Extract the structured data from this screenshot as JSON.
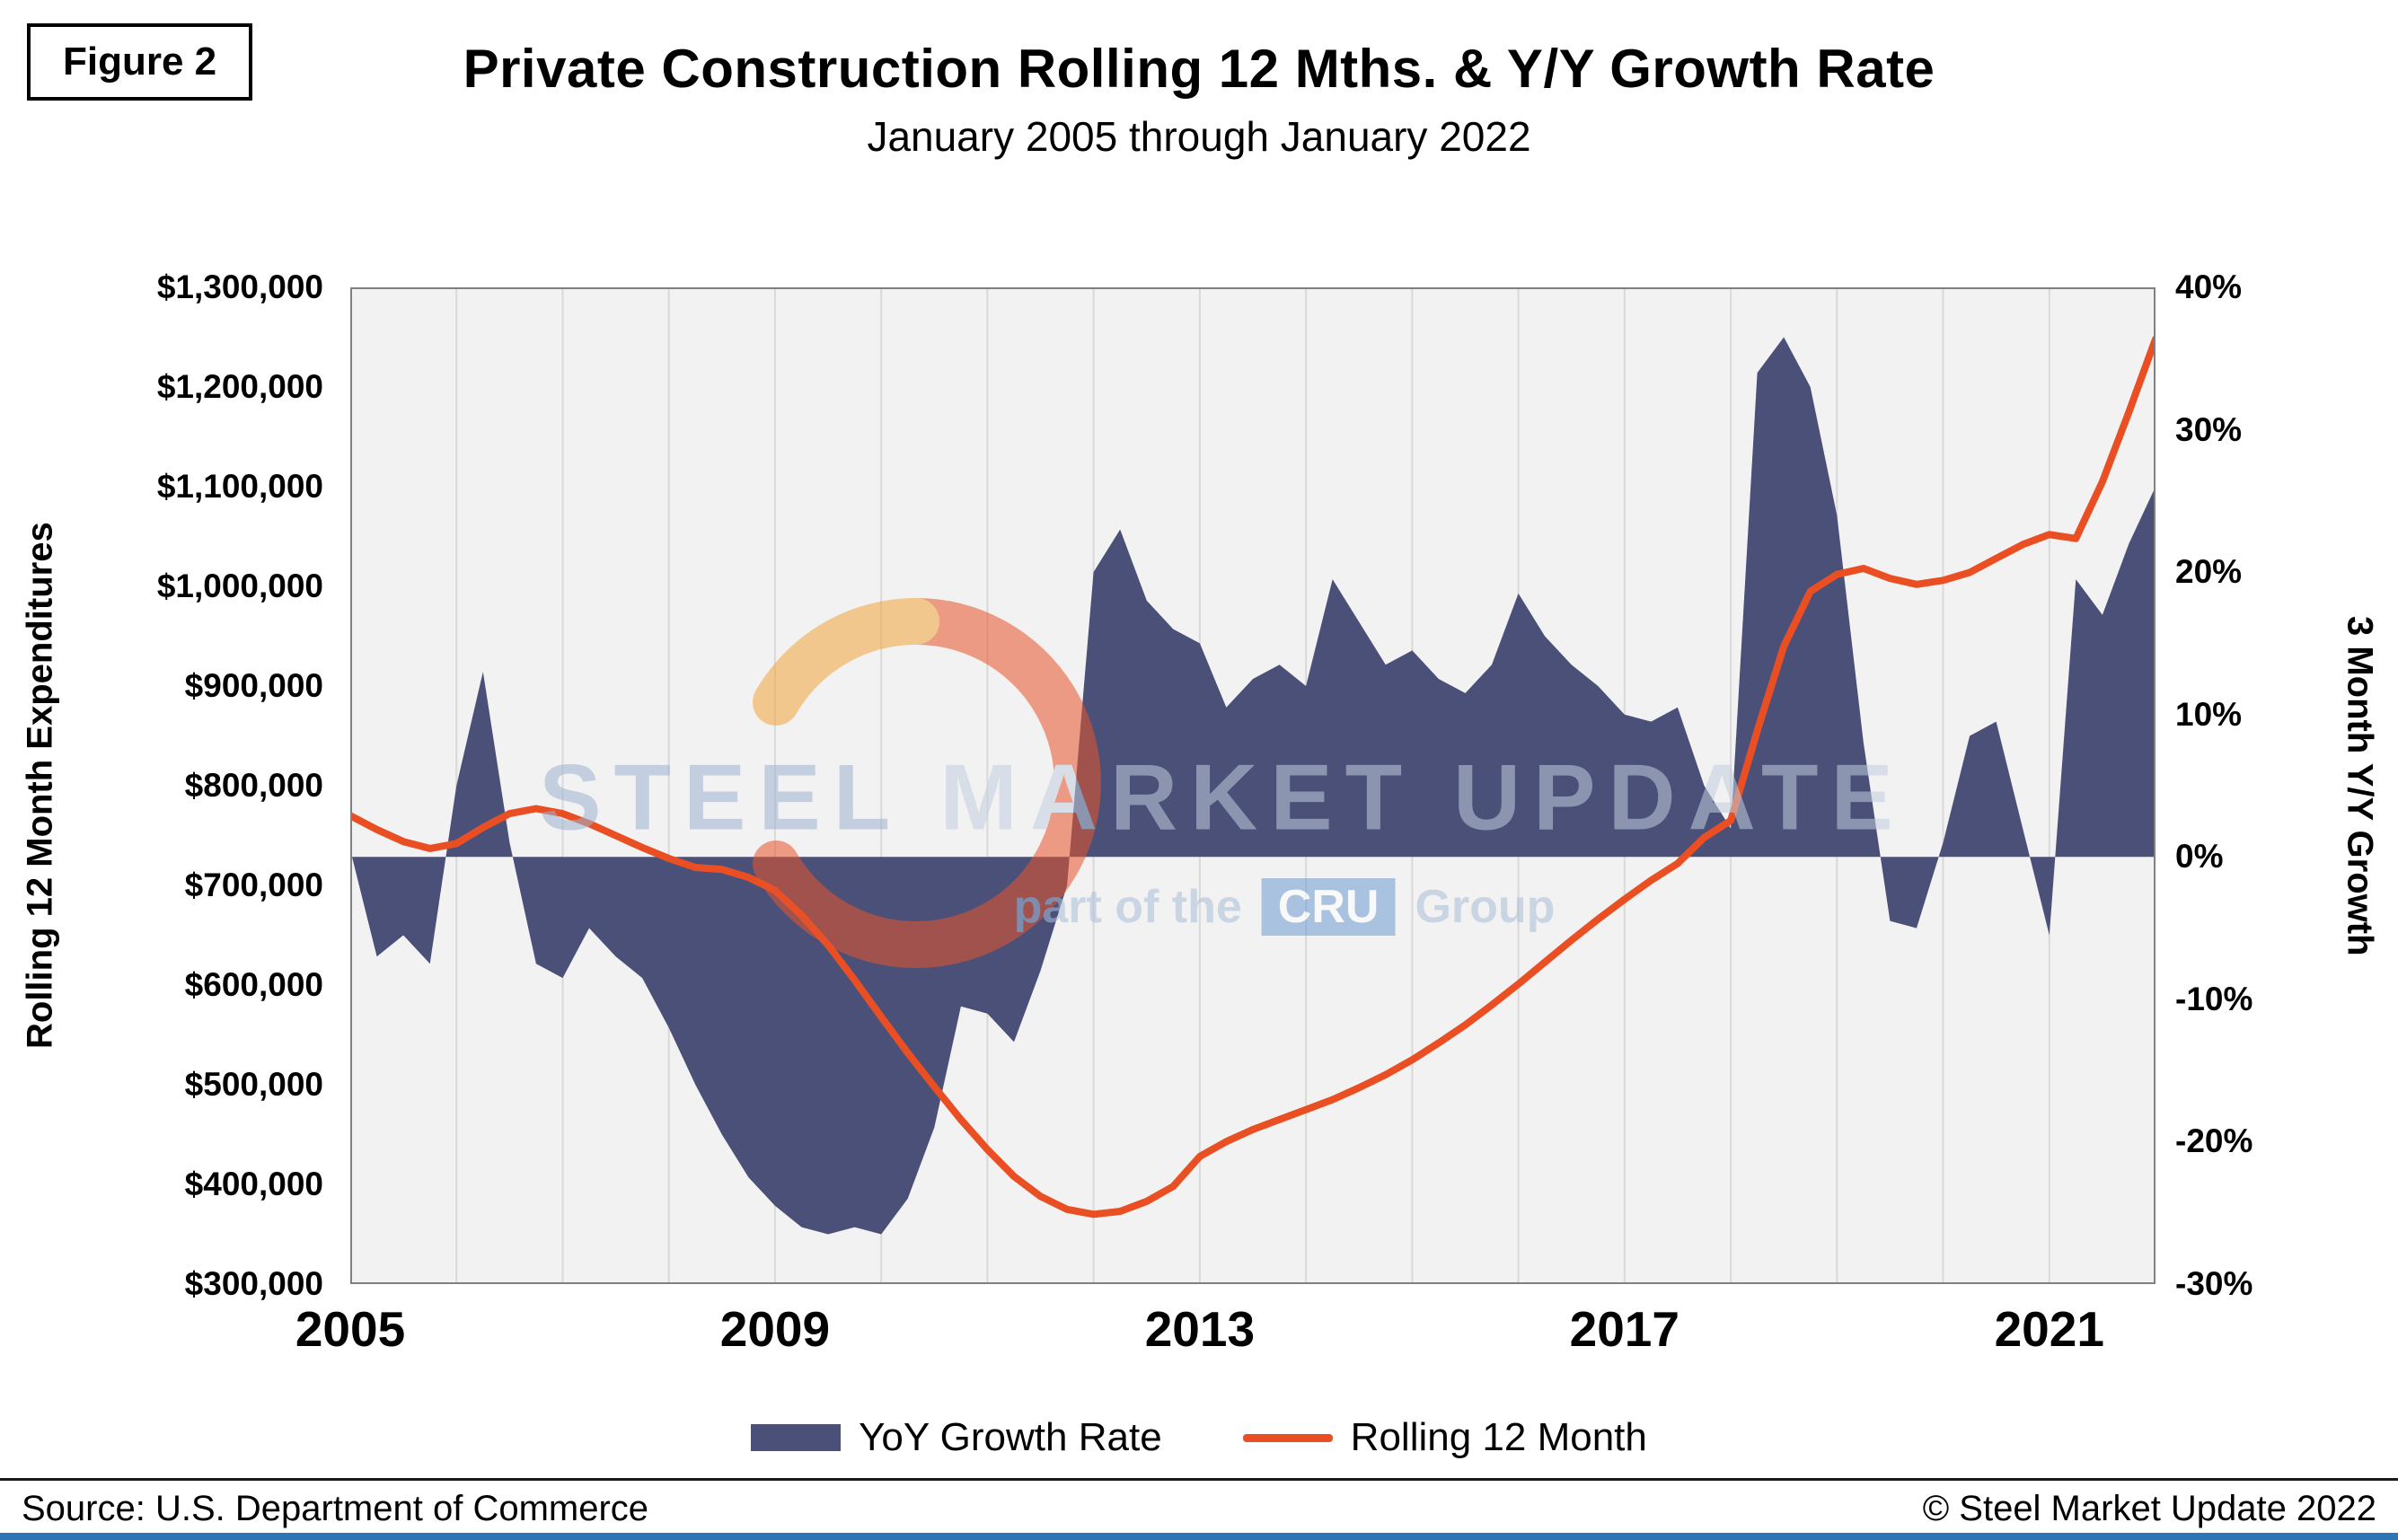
{
  "figure_label": "Figure 2",
  "title": "Private Construction Rolling 12 Mths. & Y/Y Growth Rate",
  "subtitle": "January 2005 through January 2022",
  "footer": {
    "source": "Source: U.S. Department of Commerce",
    "copyright": "© Steel Market Update 2022"
  },
  "watermark": {
    "word1": "STEEL",
    "word2": "MARKET",
    "word3": "UPDATE",
    "sub_prefix": "part of the",
    "sub_box": "CRU",
    "sub_suffix": "Group"
  },
  "legend": [
    {
      "label": "YoY Growth Rate",
      "type": "area",
      "color": "#4a5078"
    },
    {
      "label": "Rolling 12 Month",
      "type": "line",
      "color": "#ea4f23"
    }
  ],
  "chart_data": {
    "type": "combo",
    "note": "Values estimated from figure at quarterly resolution, Jan 2005 through Jan 2022",
    "plot_bg": "#f2f2f2",
    "gridline_color": "#d9d9d9",
    "frame_color": "#808080",
    "grid": "vertical-yearly",
    "x_range": [
      2005,
      2022
    ],
    "baseline_right": 0,
    "left_axis": {
      "title": "Rolling 12 Month Expenditures",
      "min": 300000,
      "max": 1300000,
      "tick_step": 100000,
      "tick_labels": [
        "$1,300,000",
        "$1,200,000",
        "$1,100,000",
        "$1,000,000",
        "$900,000",
        "$800,000",
        "$700,000",
        "$600,000",
        "$500,000",
        "$400,000",
        "$300,000"
      ]
    },
    "right_axis": {
      "title": "3 Month Y/Y Growth",
      "min": -30,
      "max": 40,
      "tick_step": 10,
      "tick_labels": [
        "40%",
        "30%",
        "20%",
        "10%",
        "0%",
        "-10%",
        "-20%",
        "-30%"
      ]
    },
    "x_ticks": [
      {
        "label": "2005",
        "year": 2005
      },
      {
        "label": "2009",
        "year": 2009
      },
      {
        "label": "2013",
        "year": 2013
      },
      {
        "label": "2017",
        "year": 2017
      },
      {
        "label": "2021",
        "year": 2021
      }
    ],
    "x": [
      2005,
      2005.25,
      2005.5,
      2005.75,
      2006,
      2006.25,
      2006.5,
      2006.75,
      2007,
      2007.25,
      2007.5,
      2007.75,
      2008,
      2008.25,
      2008.5,
      2008.75,
      2009,
      2009.25,
      2009.5,
      2009.75,
      2010,
      2010.25,
      2010.5,
      2010.75,
      2011,
      2011.25,
      2011.5,
      2011.75,
      2012,
      2012.25,
      2012.5,
      2012.75,
      2013,
      2013.25,
      2013.5,
      2013.75,
      2014,
      2014.25,
      2014.5,
      2014.75,
      2015,
      2015.25,
      2015.5,
      2015.75,
      2016,
      2016.25,
      2016.5,
      2016.75,
      2017,
      2017.25,
      2017.5,
      2017.75,
      2018,
      2018.25,
      2018.5,
      2018.75,
      2019,
      2019.25,
      2019.5,
      2019.75,
      2020,
      2020.25,
      2020.5,
      2020.75,
      2021,
      2021.25,
      2021.5,
      2021.75,
      2022
    ],
    "series": [
      {
        "name": "YoY Growth Rate",
        "type": "area",
        "axis": "right",
        "unit": "percent",
        "color": "#4a5078",
        "values": [
          0.5,
          -7,
          -5.5,
          -7.5,
          5,
          13,
          1,
          -7.5,
          -8.5,
          -5,
          -7,
          -8.5,
          -12,
          -16,
          -19.5,
          -22.5,
          -24.5,
          -26,
          -26.5,
          -26,
          -26.5,
          -24,
          -19,
          -10.5,
          -11,
          -13,
          -8,
          -2,
          20,
          23,
          18,
          16,
          15,
          10.5,
          12.5,
          13.5,
          12,
          19.5,
          16.5,
          13.5,
          14.5,
          12.5,
          11.5,
          13.5,
          18.5,
          15.5,
          13.5,
          12,
          10,
          9.5,
          10.5,
          5,
          2,
          34,
          36.5,
          33,
          24,
          8,
          -4.5,
          -5,
          1,
          8.5,
          9.5,
          2,
          -5.5,
          19.5,
          17,
          22,
          26
        ]
      },
      {
        "name": "Rolling 12 Month",
        "type": "line",
        "axis": "left",
        "unit": "USD",
        "color": "#ea4f23",
        "values": [
          770000,
          756000,
          744000,
          737000,
          742000,
          758000,
          772000,
          777000,
          772000,
          762000,
          750000,
          738000,
          727000,
          718000,
          716000,
          708000,
          695000,
          670000,
          640000,
          605000,
          568000,
          532000,
          498000,
          465000,
          435000,
          408000,
          388000,
          375000,
          370000,
          373000,
          383000,
          398000,
          428000,
          443000,
          455000,
          465000,
          475000,
          485000,
          497000,
          510000,
          525000,
          542000,
          560000,
          580000,
          601000,
          623000,
          645000,
          666000,
          686000,
          705000,
          722000,
          748000,
          765000,
          855000,
          940000,
          995000,
          1012000,
          1018000,
          1008000,
          1002000,
          1006000,
          1014000,
          1028000,
          1042000,
          1052000,
          1048000,
          1105000,
          1175000,
          1248000
        ]
      }
    ]
  }
}
